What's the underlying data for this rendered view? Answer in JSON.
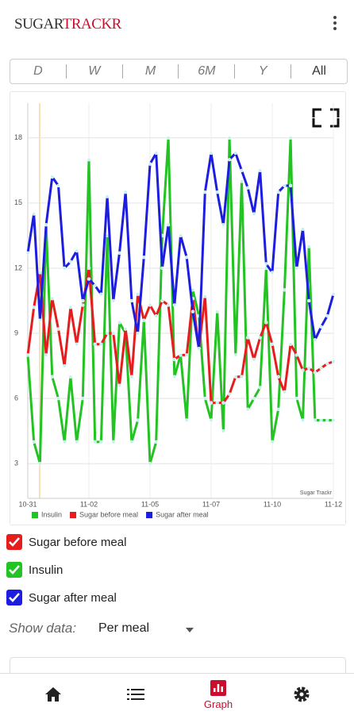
{
  "header": {
    "brand": [
      "SUGAR",
      "TRACKR"
    ]
  },
  "ranges": [
    "D",
    "W",
    "M",
    "6M",
    "Y",
    "All"
  ],
  "chart_data": {
    "type": "line",
    "categories": [
      "10-31",
      null,
      null,
      null,
      null,
      null,
      null,
      null,
      null,
      null,
      "11-02",
      null,
      null,
      null,
      null,
      null,
      null,
      null,
      null,
      null,
      "11-05",
      null,
      null,
      null,
      null,
      null,
      null,
      null,
      null,
      null,
      "11-07",
      null,
      null,
      null,
      null,
      null,
      null,
      null,
      null,
      null,
      "11-10",
      null,
      null,
      null,
      null,
      null,
      null,
      null,
      null,
      null,
      "11-12"
    ],
    "series": [
      {
        "name": "Insulin",
        "color": "#22c322",
        "values": [
          8,
          4,
          3,
          14,
          7,
          6,
          4,
          7,
          4,
          6,
          17,
          4,
          4,
          13.5,
          4,
          9.5,
          9,
          4,
          5,
          9.6,
          3,
          4,
          13.5,
          18,
          7,
          8,
          5,
          11,
          9.8,
          6,
          5,
          10,
          4.5,
          18,
          8,
          16,
          5.5,
          6,
          6.5,
          12,
          4,
          5.5,
          11,
          18,
          6,
          5,
          13,
          5,
          5,
          5,
          5
        ]
      },
      {
        "name": "Sugar before meal",
        "color": "#e51d1d",
        "values": [
          8,
          10.2,
          11.8,
          8,
          10.6,
          9.2,
          7.5,
          10.2,
          8.5,
          10.3,
          12,
          8.5,
          8.5,
          9,
          9,
          6.6,
          9.2,
          7,
          10.8,
          9.6,
          10.3,
          9.8,
          10.5,
          10.3,
          7.8,
          8,
          8,
          10.6,
          8.3,
          10.7,
          5.8,
          5.8,
          5.8,
          6.2,
          7,
          7,
          8.8,
          7.8,
          8.8,
          9.5,
          8.5,
          7,
          6.3,
          8.5,
          8,
          7.3,
          7.4,
          7.2,
          7.4,
          7.6,
          7.7
        ]
      },
      {
        "name": "Sugar after meal",
        "color": "#1d1de0",
        "values": [
          12.7,
          14.5,
          9.6,
          14,
          16.2,
          15.8,
          12,
          12.3,
          12.8,
          10.5,
          11.5,
          11.2,
          10.8,
          15.3,
          10.5,
          12.7,
          15.5,
          10.5,
          9,
          12.5,
          16.8,
          17.3,
          12,
          14,
          10.3,
          13.5,
          12.5,
          10,
          8.3,
          15.5,
          17.3,
          15.5,
          14,
          17,
          17.3,
          16.5,
          15.7,
          14.5,
          16.5,
          12.2,
          11.8,
          15.5,
          15.8,
          15.8,
          12,
          13.8,
          10.5,
          8.7,
          9.3,
          9.8,
          10.8
        ]
      }
    ],
    "ylim": [
      1.4,
      19.6
    ],
    "yticks": [
      3,
      6,
      9,
      12,
      15,
      18
    ],
    "grid": true,
    "watermark": "Sugar Trackr"
  },
  "show_data": {
    "label": "Show data:",
    "value": "Per meal"
  },
  "nav": {
    "active": "Graph"
  }
}
